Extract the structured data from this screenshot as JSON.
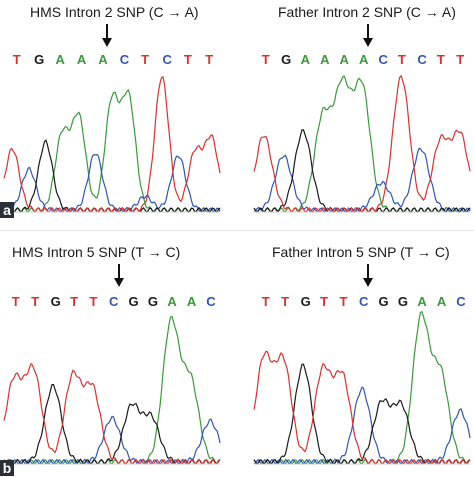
{
  "colors": {
    "A": "#3a9a3a",
    "C": "#2f56b8",
    "G": "#1a1a1a",
    "T": "#d8322e"
  },
  "panels": [
    {
      "id": "a",
      "label": "a",
      "left": {
        "title": "HMS Intron 2 SNP (C → A)",
        "bases": [
          "T",
          "G",
          "A",
          "A",
          "A",
          "C",
          "T",
          "C",
          "T",
          "T"
        ],
        "peaks": [
          {
            "b": "T",
            "h": 0.45
          },
          {
            "b": "C",
            "h": 0.3
          },
          {
            "b": "G",
            "h": 0.5
          },
          {
            "b": "A",
            "h": 0.55
          },
          {
            "b": "A",
            "h": 0.68
          },
          {
            "b": "C",
            "h": 0.42
          },
          {
            "b": "A",
            "h": 0.8
          },
          {
            "b": "A",
            "h": 0.82
          },
          {
            "b": "C",
            "h": 0.1
          },
          {
            "b": "T",
            "h": 0.98
          },
          {
            "b": "C",
            "h": 0.4
          },
          {
            "b": "T",
            "h": 0.42
          },
          {
            "b": "T",
            "h": 0.52
          }
        ]
      },
      "right": {
        "title": "Father Intron 2 SNP (C → A)",
        "bases": [
          "T",
          "G",
          "A",
          "A",
          "A",
          "A",
          "C",
          "T",
          "C",
          "T",
          "T"
        ],
        "peaks": [
          {
            "b": "T",
            "h": 0.55
          },
          {
            "b": "C",
            "h": 0.4
          },
          {
            "b": "G",
            "h": 0.58
          },
          {
            "b": "A",
            "h": 0.68
          },
          {
            "b": "A",
            "h": 0.88
          },
          {
            "b": "A",
            "h": 0.9
          },
          {
            "b": "C",
            "h": 0.2
          },
          {
            "b": "T",
            "h": 0.98
          },
          {
            "b": "C",
            "h": 0.45
          },
          {
            "b": "T",
            "h": 0.5
          },
          {
            "b": "T",
            "h": 0.55
          }
        ]
      }
    },
    {
      "id": "b",
      "label": "b",
      "left": {
        "title": "HMS Intron 5 SNP (T → C)",
        "bases": [
          "T",
          "T",
          "G",
          "T",
          "T",
          "C",
          "G",
          "G",
          "A",
          "A",
          "C"
        ],
        "peaks": [
          {
            "b": "T",
            "h": 0.55
          },
          {
            "b": "T",
            "h": 0.62
          },
          {
            "b": "G",
            "h": 0.52
          },
          {
            "b": "T",
            "h": 0.58
          },
          {
            "b": "T",
            "h": 0.5
          },
          {
            "b": "C",
            "h": 0.3
          },
          {
            "b": "G",
            "h": 0.38
          },
          {
            "b": "G",
            "h": 0.3
          },
          {
            "b": "A",
            "h": 0.95
          },
          {
            "b": "A",
            "h": 0.55
          },
          {
            "b": "C",
            "h": 0.28
          }
        ]
      },
      "right": {
        "title": "Father Intron 5 SNP (T → C)",
        "bases": [
          "T",
          "T",
          "G",
          "T",
          "T",
          "C",
          "G",
          "G",
          "A",
          "A",
          "C"
        ],
        "peaks": [
          {
            "b": "T",
            "h": 0.7
          },
          {
            "b": "T",
            "h": 0.68
          },
          {
            "b": "G",
            "h": 0.66
          },
          {
            "b": "T",
            "h": 0.62
          },
          {
            "b": "T",
            "h": 0.58
          },
          {
            "b": "C",
            "h": 0.5
          },
          {
            "b": "G",
            "h": 0.4
          },
          {
            "b": "G",
            "h": 0.38
          },
          {
            "b": "A",
            "h": 0.98
          },
          {
            "b": "A",
            "h": 0.6
          },
          {
            "b": "C",
            "h": 0.35
          }
        ]
      }
    }
  ]
}
